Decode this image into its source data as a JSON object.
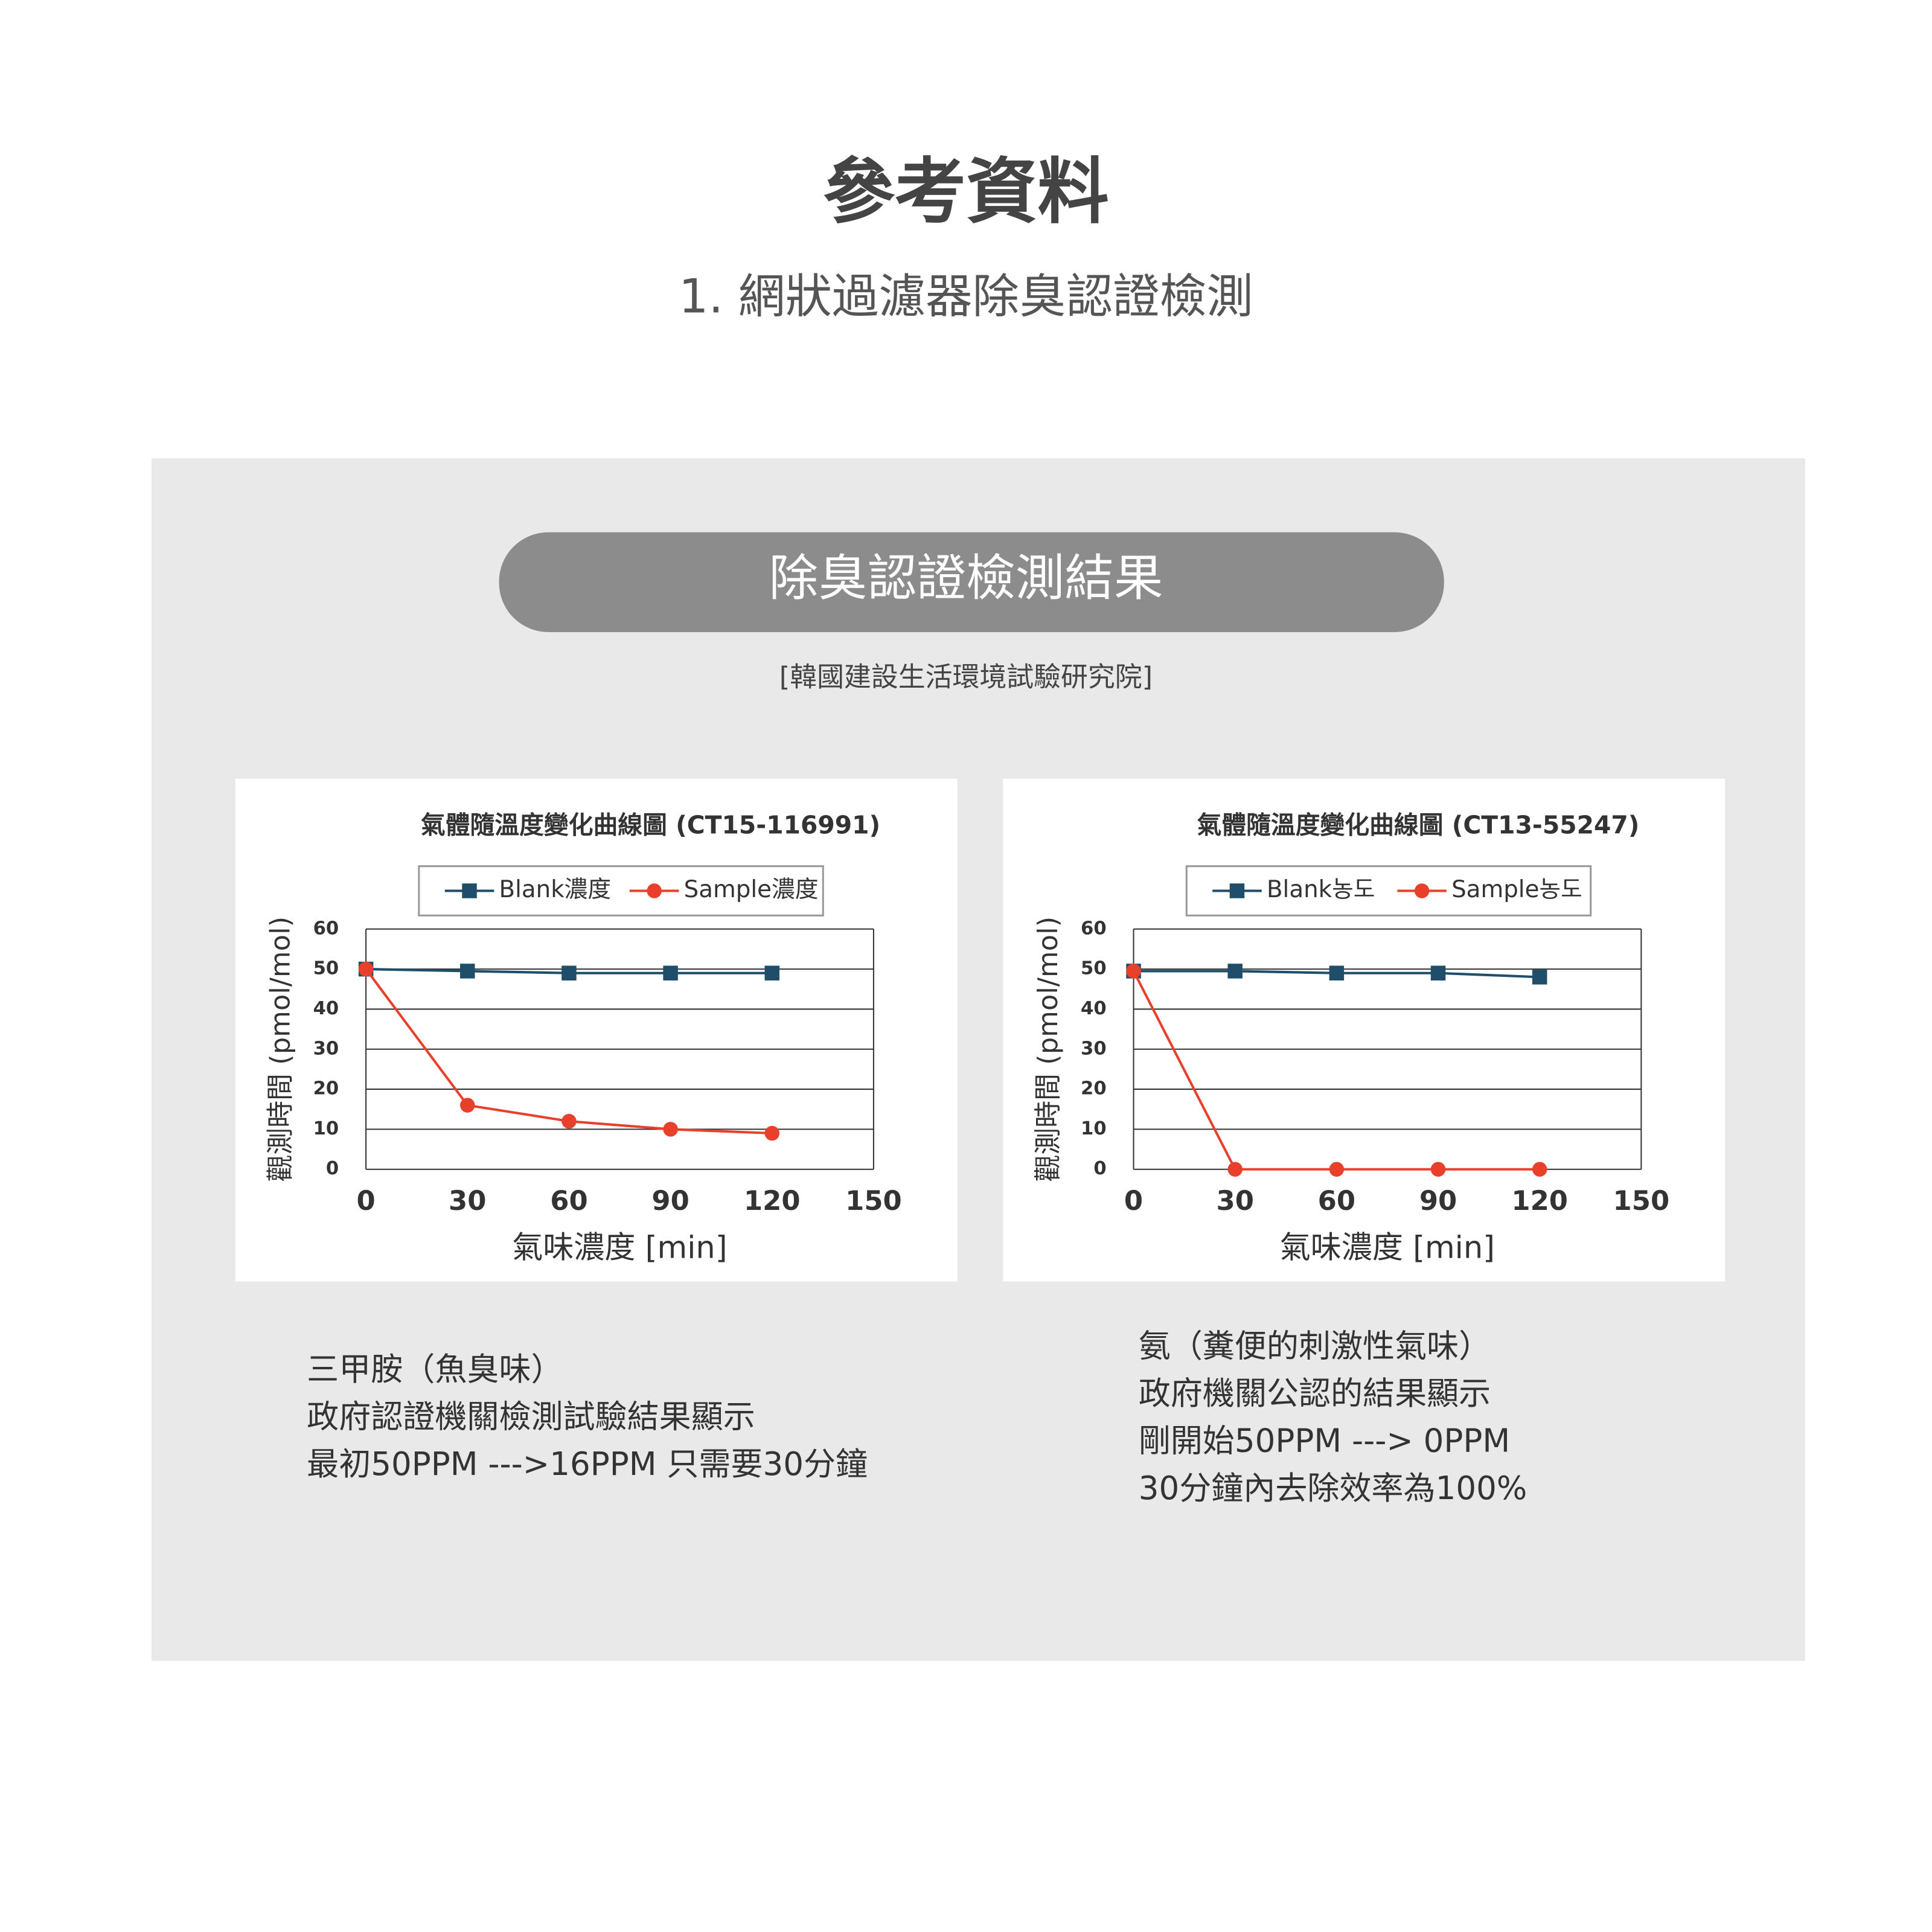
{
  "header": {
    "title": "參考資料",
    "subtitle": "1. 網狀過濾器除臭認證檢測"
  },
  "panel": {
    "title": "除臭認證檢測結果",
    "source": "[韓國建設生活環境試驗研究院]"
  },
  "chart_data": [
    {
      "type": "line",
      "title": "氣體隨溫度變化曲線圖 (CT15-116991)",
      "x_label": "氣味濃度 [min]",
      "y_label": "觀測時間 (pmol/mol)",
      "x": [
        0,
        30,
        60,
        90,
        120
      ],
      "series": [
        {
          "name": "Blank濃度",
          "color": "#1f4e6b",
          "marker": "square",
          "values": [
            50,
            49.5,
            49,
            49,
            49
          ]
        },
        {
          "name": "Sample濃度",
          "color": "#e8402a",
          "marker": "circle",
          "values": [
            50,
            16,
            12,
            10,
            9
          ]
        }
      ],
      "xlim": [
        0,
        150
      ],
      "xticks": [
        0,
        30,
        60,
        90,
        120,
        150
      ],
      "ylim": [
        0,
        60
      ],
      "yticks": [
        0,
        10,
        20,
        30,
        40,
        50,
        60
      ],
      "grid": true
    },
    {
      "type": "line",
      "title": "氣體隨溫度變化曲線圖 (CT13-55247)",
      "x_label": "氣味濃度 [min]",
      "y_label": "觀測時間 (pmol/mol)",
      "x": [
        0,
        30,
        60,
        90,
        120
      ],
      "series": [
        {
          "name": "Blank농도",
          "color": "#1f4e6b",
          "marker": "square",
          "values": [
            49.5,
            49.5,
            49,
            49,
            48
          ]
        },
        {
          "name": "Sample농도",
          "color": "#e8402a",
          "marker": "circle",
          "values": [
            49.5,
            0,
            0,
            0,
            0
          ]
        }
      ],
      "xlim": [
        0,
        150
      ],
      "xticks": [
        0,
        30,
        60,
        90,
        120,
        150
      ],
      "ylim": [
        0,
        60
      ],
      "yticks": [
        0,
        10,
        20,
        30,
        40,
        50,
        60
      ],
      "grid": true
    }
  ],
  "captions": [
    [
      "三甲胺（魚臭味）",
      "政府認證機關檢測試驗結果顯示",
      "最初50PPM --->16PPM 只需要30分鐘"
    ],
    [
      "氨（糞便的刺激性氣味）",
      "政府機關公認的結果顯示",
      "剛開始50PPM ---> 0PPM",
      "30分鐘內去除效率為100%"
    ]
  ]
}
